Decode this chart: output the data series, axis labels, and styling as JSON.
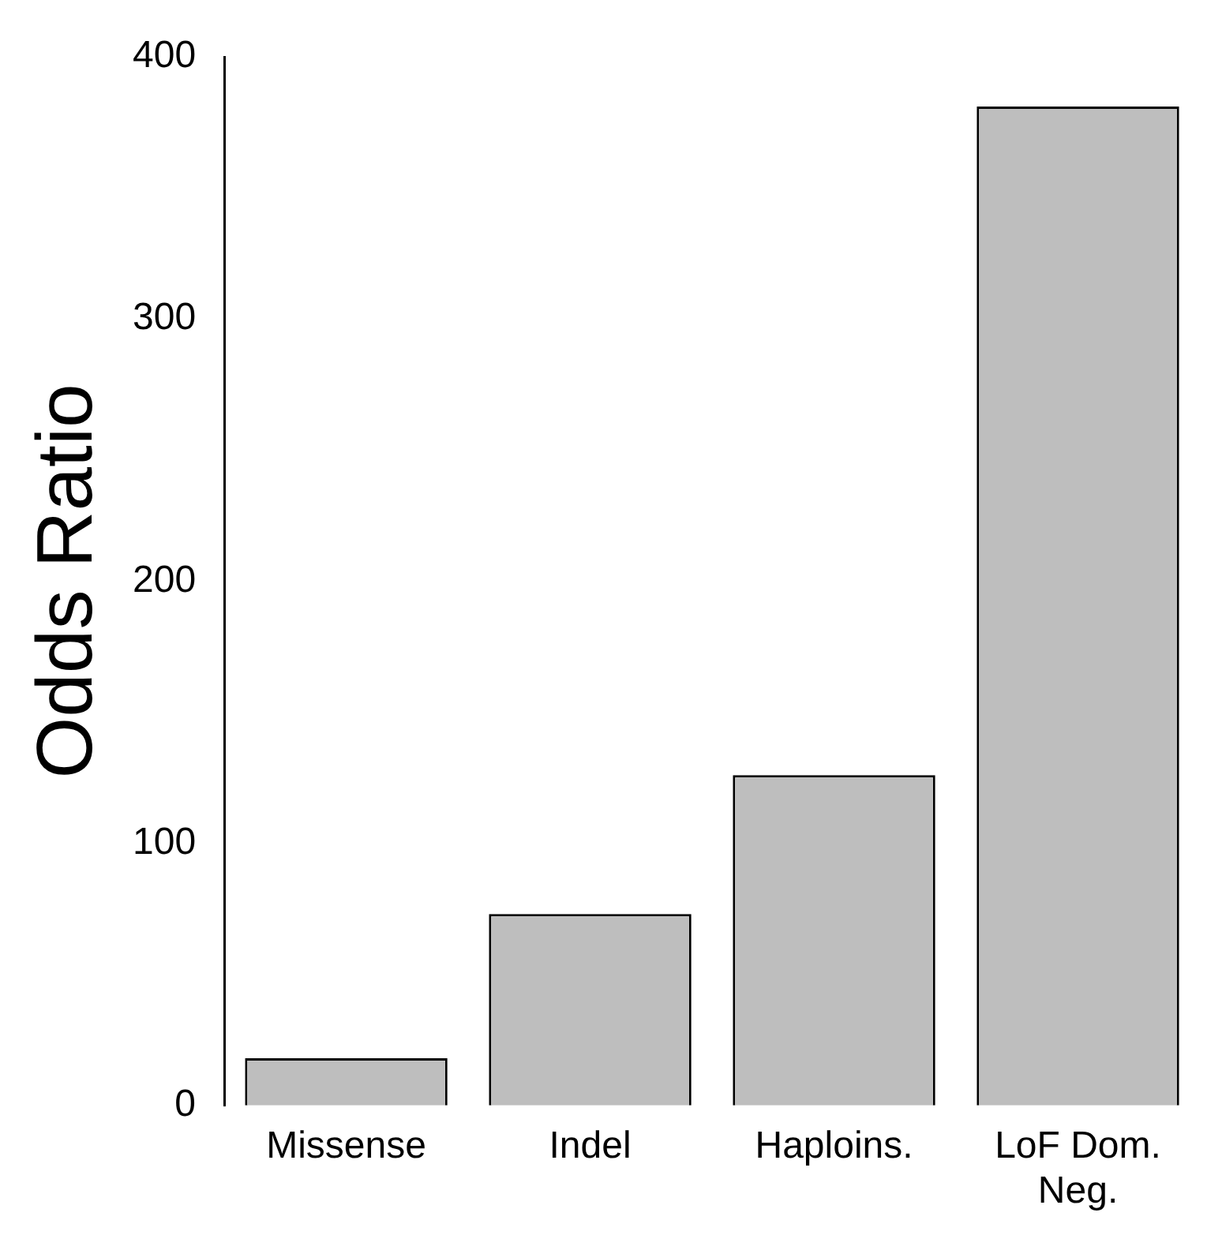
{
  "chart_data": {
    "type": "bar",
    "ylabel": "Odds Ratio",
    "categories": [
      "Missense",
      "Indel",
      "Haploins.",
      "LoF Dom. Neg."
    ],
    "values": [
      18,
      73,
      126,
      381
    ],
    "color": "#bebebe",
    "ylim": [
      0,
      400
    ],
    "yticks": [
      0,
      100,
      200,
      300,
      400
    ],
    "grid": false,
    "legend": false
  }
}
